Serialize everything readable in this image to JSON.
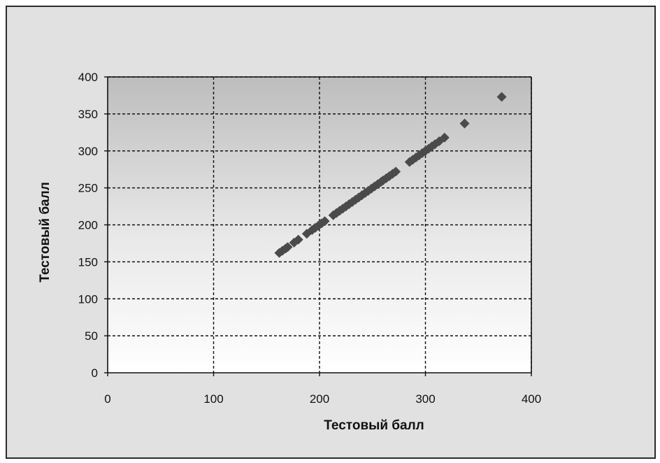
{
  "chart_data": {
    "type": "scatter",
    "xlabel": "Тестовый балл",
    "ylabel": "Тестовый балл",
    "xlim": [
      0,
      400
    ],
    "ylim": [
      0,
      400
    ],
    "xticks": [
      "0",
      "100",
      "200",
      "300",
      "400"
    ],
    "yticks": [
      "0",
      "50",
      "100",
      "150",
      "200",
      "250",
      "300",
      "350",
      "400"
    ],
    "grid": true,
    "marker": "diamond",
    "marker_color": "#4a4a4a",
    "points": [
      [
        162,
        162
      ],
      [
        165,
        165
      ],
      [
        168,
        168
      ],
      [
        170,
        170
      ],
      [
        176,
        176
      ],
      [
        180,
        180
      ],
      [
        188,
        188
      ],
      [
        193,
        193
      ],
      [
        196,
        196
      ],
      [
        199,
        199
      ],
      [
        202,
        202
      ],
      [
        205,
        205
      ],
      [
        213,
        213
      ],
      [
        216,
        216
      ],
      [
        219,
        219
      ],
      [
        222,
        222
      ],
      [
        225,
        225
      ],
      [
        228,
        228
      ],
      [
        231,
        231
      ],
      [
        234,
        234
      ],
      [
        237,
        237
      ],
      [
        240,
        240
      ],
      [
        243,
        243
      ],
      [
        246,
        246
      ],
      [
        249,
        249
      ],
      [
        252,
        252
      ],
      [
        255,
        255
      ],
      [
        258,
        258
      ],
      [
        260,
        260
      ],
      [
        263,
        263
      ],
      [
        266,
        266
      ],
      [
        269,
        269
      ],
      [
        272,
        272
      ],
      [
        285,
        285
      ],
      [
        288,
        288
      ],
      [
        291,
        291
      ],
      [
        294,
        294
      ],
      [
        297,
        297
      ],
      [
        300,
        300
      ],
      [
        303,
        303
      ],
      [
        306,
        306
      ],
      [
        309,
        309
      ],
      [
        313,
        313
      ],
      [
        318,
        318
      ],
      [
        337,
        337
      ],
      [
        372,
        373
      ]
    ]
  }
}
